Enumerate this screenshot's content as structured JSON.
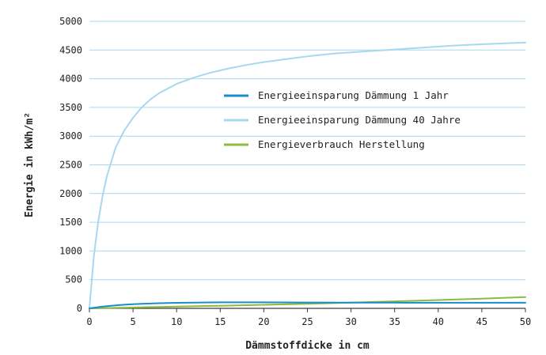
{
  "chart_data": {
    "type": "line",
    "title": "",
    "xlabel": "Dämmstoffdicke in cm",
    "ylabel": "Energie in kWh/m²",
    "xlim": [
      0,
      50
    ],
    "ylim": [
      0,
      5000
    ],
    "xticks": [
      0,
      5,
      10,
      15,
      20,
      25,
      30,
      35,
      40,
      45,
      50
    ],
    "yticks": [
      0,
      500,
      1000,
      1500,
      2000,
      2500,
      3000,
      3500,
      4000,
      4500,
      5000
    ],
    "grid": "horizontal",
    "legend_position": "center-right",
    "series": [
      {
        "name": "Energieeinsparung Dämmung 1 Jahr",
        "color": "#1a8ccc",
        "x": [
          0,
          1,
          2,
          3,
          4,
          5,
          6,
          8,
          10,
          12,
          15,
          20,
          25,
          30,
          35,
          40,
          45,
          50
        ],
        "y": [
          0,
          20,
          38,
          52,
          63,
          72,
          80,
          90,
          97,
          101,
          104,
          104,
          102,
          100,
          99,
          98,
          98,
          98
        ]
      },
      {
        "name": "Energieeinsparung Dämmung 40 Jahre",
        "color": "#a8d8ef",
        "x": [
          0,
          0.5,
          1,
          1.5,
          2,
          3,
          4,
          5,
          6,
          7,
          8,
          10,
          12,
          14,
          16,
          18,
          20,
          22,
          25,
          28,
          30,
          32,
          35,
          38,
          40,
          42,
          45,
          48,
          50
        ],
        "y": [
          0,
          900,
          1500,
          1950,
          2300,
          2800,
          3100,
          3320,
          3500,
          3640,
          3750,
          3910,
          4020,
          4110,
          4180,
          4240,
          4290,
          4330,
          4390,
          4440,
          4460,
          4480,
          4510,
          4540,
          4560,
          4580,
          4600,
          4620,
          4630
        ]
      },
      {
        "name": "Energieverbrauch Herstellung",
        "color": "#8cbc3c",
        "x": [
          0,
          5,
          10,
          15,
          20,
          25,
          30,
          35,
          40,
          45,
          50
        ],
        "y": [
          0,
          15,
          30,
          45,
          62,
          80,
          100,
          122,
          145,
          170,
          195
        ]
      }
    ]
  }
}
